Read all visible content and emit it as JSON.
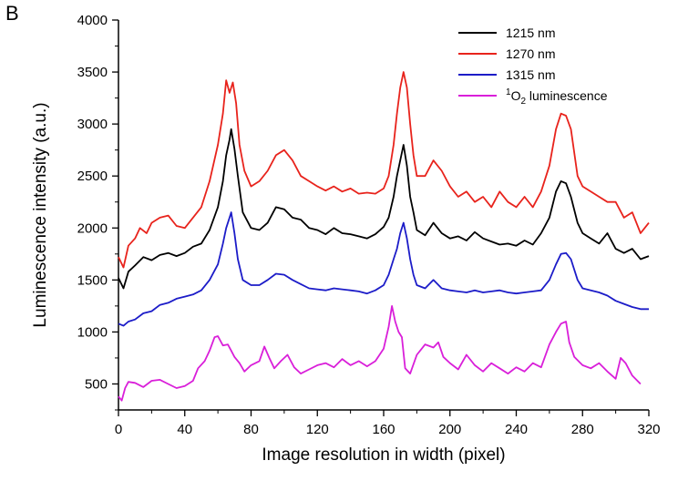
{
  "panel_label": "B",
  "chart_data": {
    "type": "line",
    "title": "",
    "xlabel": "Image resolution in width (pixel)",
    "ylabel": "Luminescence intensity (a.u.)",
    "xlim": [
      0,
      320
    ],
    "ylim": [
      250,
      4000
    ],
    "x_ticks": [
      0,
      40,
      80,
      120,
      160,
      200,
      240,
      280,
      320
    ],
    "y_ticks": [
      500,
      1000,
      1500,
      2000,
      2500,
      3000,
      3500,
      4000
    ],
    "grid": false,
    "legend_position": "top-right",
    "series": [
      {
        "name": "1215 nm",
        "color": "#000000",
        "points": [
          [
            0,
            1520
          ],
          [
            3,
            1420
          ],
          [
            6,
            1580
          ],
          [
            10,
            1640
          ],
          [
            15,
            1720
          ],
          [
            20,
            1690
          ],
          [
            25,
            1740
          ],
          [
            30,
            1760
          ],
          [
            35,
            1730
          ],
          [
            40,
            1760
          ],
          [
            45,
            1820
          ],
          [
            50,
            1850
          ],
          [
            55,
            1980
          ],
          [
            60,
            2200
          ],
          [
            63,
            2450
          ],
          [
            65,
            2700
          ],
          [
            67,
            2850
          ],
          [
            68,
            2950
          ],
          [
            70,
            2760
          ],
          [
            72,
            2500
          ],
          [
            75,
            2150
          ],
          [
            80,
            2000
          ],
          [
            85,
            1980
          ],
          [
            90,
            2050
          ],
          [
            95,
            2200
          ],
          [
            100,
            2180
          ],
          [
            105,
            2100
          ],
          [
            110,
            2080
          ],
          [
            115,
            2000
          ],
          [
            120,
            1980
          ],
          [
            125,
            1940
          ],
          [
            130,
            2000
          ],
          [
            135,
            1950
          ],
          [
            140,
            1940
          ],
          [
            145,
            1920
          ],
          [
            150,
            1900
          ],
          [
            155,
            1940
          ],
          [
            160,
            2010
          ],
          [
            163,
            2100
          ],
          [
            166,
            2300
          ],
          [
            168,
            2500
          ],
          [
            170,
            2650
          ],
          [
            172,
            2800
          ],
          [
            174,
            2600
          ],
          [
            176,
            2300
          ],
          [
            178,
            2150
          ],
          [
            180,
            1980
          ],
          [
            185,
            1930
          ],
          [
            190,
            2050
          ],
          [
            195,
            1950
          ],
          [
            200,
            1900
          ],
          [
            205,
            1920
          ],
          [
            210,
            1880
          ],
          [
            215,
            1960
          ],
          [
            220,
            1900
          ],
          [
            225,
            1870
          ],
          [
            230,
            1840
          ],
          [
            235,
            1850
          ],
          [
            240,
            1830
          ],
          [
            245,
            1880
          ],
          [
            250,
            1840
          ],
          [
            255,
            1950
          ],
          [
            260,
            2100
          ],
          [
            264,
            2350
          ],
          [
            267,
            2450
          ],
          [
            270,
            2430
          ],
          [
            273,
            2300
          ],
          [
            277,
            2050
          ],
          [
            280,
            1950
          ],
          [
            285,
            1900
          ],
          [
            290,
            1850
          ],
          [
            295,
            1950
          ],
          [
            300,
            1800
          ],
          [
            305,
            1760
          ],
          [
            310,
            1800
          ],
          [
            315,
            1700
          ],
          [
            320,
            1730
          ]
        ]
      },
      {
        "name": "1270 nm",
        "color": "#e8231c",
        "points": [
          [
            0,
            1720
          ],
          [
            3,
            1620
          ],
          [
            6,
            1830
          ],
          [
            10,
            1900
          ],
          [
            13,
            2000
          ],
          [
            17,
            1950
          ],
          [
            20,
            2050
          ],
          [
            25,
            2100
          ],
          [
            30,
            2120
          ],
          [
            35,
            2020
          ],
          [
            40,
            2000
          ],
          [
            45,
            2100
          ],
          [
            50,
            2200
          ],
          [
            55,
            2450
          ],
          [
            60,
            2800
          ],
          [
            63,
            3100
          ],
          [
            65,
            3420
          ],
          [
            67,
            3300
          ],
          [
            69,
            3400
          ],
          [
            71,
            3200
          ],
          [
            73,
            2800
          ],
          [
            76,
            2550
          ],
          [
            80,
            2400
          ],
          [
            85,
            2450
          ],
          [
            90,
            2550
          ],
          [
            95,
            2700
          ],
          [
            100,
            2750
          ],
          [
            105,
            2650
          ],
          [
            110,
            2500
          ],
          [
            115,
            2450
          ],
          [
            120,
            2400
          ],
          [
            125,
            2360
          ],
          [
            130,
            2400
          ],
          [
            135,
            2350
          ],
          [
            140,
            2380
          ],
          [
            145,
            2330
          ],
          [
            150,
            2340
          ],
          [
            155,
            2330
          ],
          [
            160,
            2380
          ],
          [
            163,
            2500
          ],
          [
            166,
            2800
          ],
          [
            168,
            3100
          ],
          [
            170,
            3350
          ],
          [
            172,
            3500
          ],
          [
            174,
            3350
          ],
          [
            176,
            3000
          ],
          [
            178,
            2700
          ],
          [
            180,
            2500
          ],
          [
            185,
            2500
          ],
          [
            190,
            2650
          ],
          [
            195,
            2550
          ],
          [
            200,
            2400
          ],
          [
            205,
            2300
          ],
          [
            210,
            2350
          ],
          [
            215,
            2250
          ],
          [
            220,
            2300
          ],
          [
            225,
            2200
          ],
          [
            230,
            2350
          ],
          [
            235,
            2250
          ],
          [
            240,
            2200
          ],
          [
            245,
            2300
          ],
          [
            250,
            2200
          ],
          [
            255,
            2350
          ],
          [
            260,
            2600
          ],
          [
            264,
            2950
          ],
          [
            267,
            3100
          ],
          [
            270,
            3080
          ],
          [
            273,
            2950
          ],
          [
            277,
            2500
          ],
          [
            280,
            2400
          ],
          [
            285,
            2350
          ],
          [
            290,
            2300
          ],
          [
            295,
            2250
          ],
          [
            300,
            2250
          ],
          [
            305,
            2100
          ],
          [
            310,
            2150
          ],
          [
            315,
            1950
          ],
          [
            320,
            2050
          ]
        ]
      },
      {
        "name": "1315 nm",
        "color": "#1c1cc8",
        "points": [
          [
            0,
            1080
          ],
          [
            3,
            1060
          ],
          [
            6,
            1100
          ],
          [
            10,
            1120
          ],
          [
            15,
            1180
          ],
          [
            20,
            1200
          ],
          [
            25,
            1260
          ],
          [
            30,
            1280
          ],
          [
            35,
            1320
          ],
          [
            40,
            1340
          ],
          [
            45,
            1360
          ],
          [
            50,
            1400
          ],
          [
            55,
            1500
          ],
          [
            60,
            1650
          ],
          [
            63,
            1850
          ],
          [
            65,
            2000
          ],
          [
            67,
            2100
          ],
          [
            68,
            2150
          ],
          [
            70,
            1950
          ],
          [
            72,
            1700
          ],
          [
            75,
            1500
          ],
          [
            80,
            1450
          ],
          [
            85,
            1450
          ],
          [
            90,
            1500
          ],
          [
            95,
            1560
          ],
          [
            100,
            1550
          ],
          [
            105,
            1500
          ],
          [
            110,
            1460
          ],
          [
            115,
            1420
          ],
          [
            120,
            1410
          ],
          [
            125,
            1400
          ],
          [
            130,
            1420
          ],
          [
            135,
            1410
          ],
          [
            140,
            1400
          ],
          [
            145,
            1390
          ],
          [
            150,
            1370
          ],
          [
            155,
            1400
          ],
          [
            160,
            1450
          ],
          [
            163,
            1550
          ],
          [
            166,
            1700
          ],
          [
            168,
            1800
          ],
          [
            170,
            1950
          ],
          [
            172,
            2050
          ],
          [
            174,
            1900
          ],
          [
            176,
            1700
          ],
          [
            178,
            1550
          ],
          [
            180,
            1450
          ],
          [
            185,
            1420
          ],
          [
            190,
            1500
          ],
          [
            195,
            1420
          ],
          [
            200,
            1400
          ],
          [
            205,
            1390
          ],
          [
            210,
            1380
          ],
          [
            215,
            1400
          ],
          [
            220,
            1380
          ],
          [
            225,
            1390
          ],
          [
            230,
            1400
          ],
          [
            235,
            1380
          ],
          [
            240,
            1370
          ],
          [
            245,
            1380
          ],
          [
            250,
            1390
          ],
          [
            255,
            1400
          ],
          [
            260,
            1500
          ],
          [
            264,
            1650
          ],
          [
            267,
            1750
          ],
          [
            270,
            1760
          ],
          [
            273,
            1700
          ],
          [
            277,
            1500
          ],
          [
            280,
            1420
          ],
          [
            285,
            1400
          ],
          [
            290,
            1380
          ],
          [
            295,
            1350
          ],
          [
            300,
            1300
          ],
          [
            305,
            1270
          ],
          [
            310,
            1240
          ],
          [
            315,
            1220
          ],
          [
            320,
            1220
          ]
        ]
      },
      {
        "name": "1O2 luminescence",
        "color": "#d91fd9",
        "points": [
          [
            0,
            380
          ],
          [
            2,
            340
          ],
          [
            4,
            460
          ],
          [
            6,
            520
          ],
          [
            10,
            510
          ],
          [
            15,
            470
          ],
          [
            20,
            530
          ],
          [
            25,
            540
          ],
          [
            30,
            500
          ],
          [
            35,
            460
          ],
          [
            40,
            480
          ],
          [
            45,
            530
          ],
          [
            48,
            650
          ],
          [
            52,
            720
          ],
          [
            55,
            820
          ],
          [
            58,
            950
          ],
          [
            60,
            960
          ],
          [
            63,
            870
          ],
          [
            66,
            880
          ],
          [
            68,
            820
          ],
          [
            70,
            760
          ],
          [
            73,
            700
          ],
          [
            76,
            620
          ],
          [
            80,
            680
          ],
          [
            85,
            720
          ],
          [
            88,
            860
          ],
          [
            91,
            750
          ],
          [
            94,
            650
          ],
          [
            98,
            720
          ],
          [
            102,
            780
          ],
          [
            106,
            660
          ],
          [
            110,
            600
          ],
          [
            115,
            640
          ],
          [
            120,
            680
          ],
          [
            125,
            700
          ],
          [
            130,
            660
          ],
          [
            135,
            740
          ],
          [
            140,
            680
          ],
          [
            145,
            720
          ],
          [
            150,
            670
          ],
          [
            155,
            720
          ],
          [
            160,
            840
          ],
          [
            163,
            1050
          ],
          [
            165,
            1250
          ],
          [
            167,
            1100
          ],
          [
            169,
            1000
          ],
          [
            171,
            950
          ],
          [
            173,
            650
          ],
          [
            176,
            600
          ],
          [
            180,
            780
          ],
          [
            185,
            880
          ],
          [
            190,
            850
          ],
          [
            193,
            900
          ],
          [
            196,
            760
          ],
          [
            200,
            700
          ],
          [
            205,
            640
          ],
          [
            210,
            780
          ],
          [
            215,
            680
          ],
          [
            220,
            620
          ],
          [
            225,
            700
          ],
          [
            230,
            650
          ],
          [
            235,
            600
          ],
          [
            240,
            660
          ],
          [
            245,
            620
          ],
          [
            250,
            700
          ],
          [
            255,
            660
          ],
          [
            260,
            880
          ],
          [
            264,
            1000
          ],
          [
            267,
            1080
          ],
          [
            270,
            1100
          ],
          [
            272,
            900
          ],
          [
            275,
            760
          ],
          [
            280,
            680
          ],
          [
            285,
            650
          ],
          [
            290,
            700
          ],
          [
            295,
            620
          ],
          [
            300,
            550
          ],
          [
            303,
            750
          ],
          [
            306,
            700
          ],
          [
            310,
            580
          ],
          [
            315,
            500
          ]
        ]
      }
    ],
    "legend": [
      {
        "label": "1215 nm",
        "color": "#000000"
      },
      {
        "label": "1270 nm",
        "color": "#e8231c"
      },
      {
        "label": "1315 nm",
        "color": "#1c1cc8"
      },
      {
        "label_prefix_sup": "1",
        "label_main": "O",
        "label_sub": "2",
        "label_suffix": " luminescence",
        "color": "#d91fd9"
      }
    ]
  }
}
